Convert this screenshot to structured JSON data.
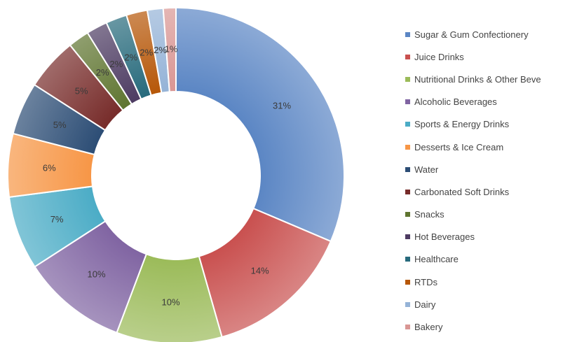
{
  "chart_data": {
    "type": "pie",
    "variant": "donut",
    "legend_position": "right",
    "slices": [
      {
        "label": "Sugar & Gum Confectionery",
        "value": 31,
        "value_label": "31%",
        "color": "#5b86c4"
      },
      {
        "label": "Juice Drinks",
        "value": 14,
        "value_label": "14%",
        "color": "#c9504f"
      },
      {
        "label": "Nutritional Drinks & Other Beve",
        "value": 10,
        "value_label": "10%",
        "color": "#9bbb59"
      },
      {
        "label": "Alcoholic Beverages",
        "value": 10,
        "value_label": "10%",
        "color": "#8064a2"
      },
      {
        "label": "Sports & Energy Drinks",
        "value": 7,
        "value_label": "7%",
        "color": "#4bacc6"
      },
      {
        "label": "Desserts & Ice Cream",
        "value": 6,
        "value_label": "6%",
        "color": "#f79646"
      },
      {
        "label": "Water",
        "value": 5,
        "value_label": "5%",
        "color": "#2c4d75"
      },
      {
        "label": "Carbonated Soft Drinks",
        "value": 5,
        "value_label": "5%",
        "color": "#772c2a"
      },
      {
        "label": "Snacks",
        "value": 2,
        "value_label": "2%",
        "color": "#5f7530"
      },
      {
        "label": "Hot Beverages",
        "value": 2,
        "value_label": "2%",
        "color": "#4d3b62"
      },
      {
        "label": "Healthcare",
        "value": 2,
        "value_label": "2%",
        "color": "#276a7c"
      },
      {
        "label": "RTDs",
        "value": 2,
        "value_label": "2%",
        "color": "#b65708"
      },
      {
        "label": "Dairy",
        "value": 1.5,
        "value_label": "2%",
        "color": "#95b3d7"
      },
      {
        "label": "Bakery",
        "value": 1.2,
        "value_label": "1%",
        "color": "#d99694"
      }
    ]
  }
}
